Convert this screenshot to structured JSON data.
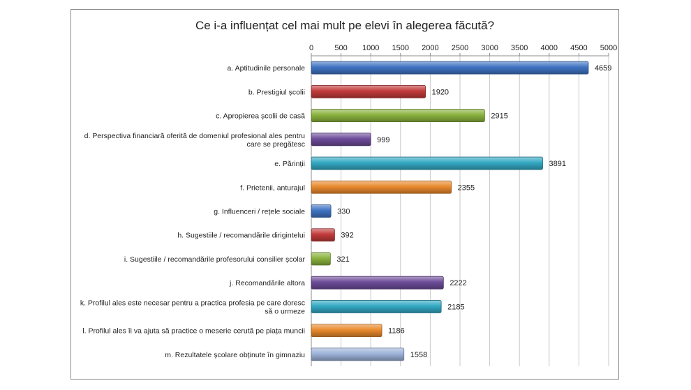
{
  "chart_data": {
    "type": "bar",
    "orientation": "horizontal",
    "title": "Ce i-a influențat cel mai mult pe elevi în alegerea făcută?",
    "xlim": [
      0,
      5000
    ],
    "ticks": [
      0,
      500,
      1000,
      1500,
      2000,
      2500,
      3000,
      3500,
      4000,
      4500,
      5000
    ],
    "tick_labels": [
      "0",
      "500",
      "1000",
      "1500",
      "2000",
      "2500",
      "3000",
      "3500",
      "4000",
      "4500",
      "5000"
    ],
    "axis_position": "top",
    "grid": true,
    "categories": [
      [
        "a. Aptitudinile personale"
      ],
      [
        "b. Prestigiul școlii"
      ],
      [
        "c. Apropierea școlii de casă"
      ],
      [
        "d. Perspectiva financiară oferită de domeniul profesional ales pentru",
        "care se pregătesc"
      ],
      [
        "e. Părinții"
      ],
      [
        "f. Prietenii, anturajul"
      ],
      [
        "g. Influenceri / rețele sociale"
      ],
      [
        "h. Sugestiile / recomandările dirigintelui"
      ],
      [
        "i. Sugestiile / recomandările profesorului consilier școlar"
      ],
      [
        "j. Recomandările altora"
      ],
      [
        "k. Profilul ales este necesar pentru a practica profesia pe care doresc",
        "să o urmeze"
      ],
      [
        "l. Profilul ales îi va ajuta să practice o meserie cerută pe piața muncii"
      ],
      [
        "m. Rezultatele școlare obținute în gimnaziu"
      ]
    ],
    "values": [
      4659,
      1920,
      2915,
      999,
      3891,
      2355,
      330,
      392,
      321,
      2222,
      2185,
      1186,
      1558
    ],
    "value_labels": [
      "4659",
      "1920",
      "2915",
      "999",
      "3891",
      "2355",
      "330",
      "392",
      "321",
      "2222",
      "2185",
      "1186",
      "1558"
    ],
    "colors": [
      "#3f73c2",
      "#c23b3b",
      "#8ab33e",
      "#6d4c9a",
      "#33a9c3",
      "#e98a2e",
      "#3f73c2",
      "#c23b3b",
      "#8ab33e",
      "#6d4c9a",
      "#33a9c3",
      "#e98a2e",
      "#9db3d9"
    ]
  }
}
